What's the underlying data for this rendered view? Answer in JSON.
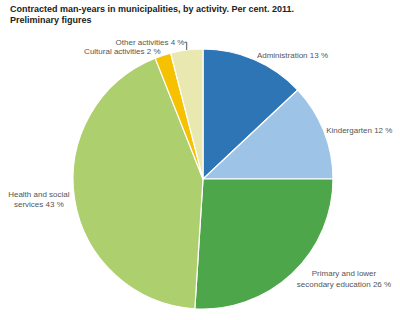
{
  "chart_data": {
    "type": "pie",
    "title": "Contracted man-years in municipalities, by activity. Per cent. 2011.",
    "subtitle": "Preliminary figures",
    "categories": [
      "Administration 13 %",
      "Kindergarten 12 %",
      "Primary and lower\nsecondary education 26 %",
      "Health and social\nservices 43 %",
      "Cultural activities 2 %",
      "Other activities 4 %"
    ],
    "values": [
      13,
      12,
      26,
      43,
      2,
      4
    ],
    "colors": [
      "#2E75B6",
      "#9DC3E6",
      "#4EA64B",
      "#AECF6E",
      "#F5C100",
      "#E8E8B0"
    ]
  }
}
